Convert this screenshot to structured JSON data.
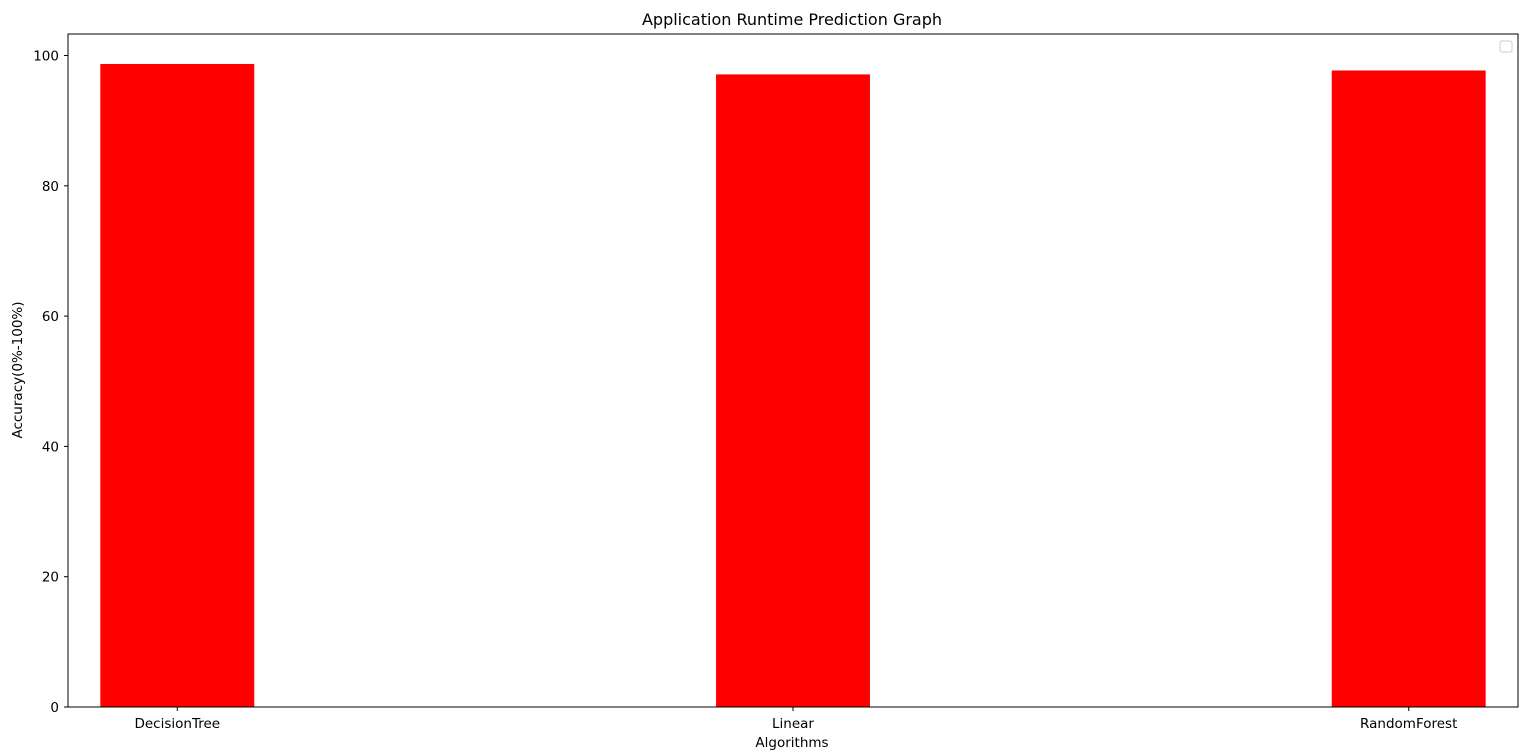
{
  "chart_data": {
    "type": "bar",
    "title": "Application Runtime Prediction Graph",
    "xlabel": "Algorithms",
    "ylabel": "Accuracy(0%-100%)",
    "categories": [
      "DecisionTree",
      "Linear",
      "RandomForest"
    ],
    "values": [
      98.7,
      97.1,
      97.7
    ],
    "ylim": [
      0,
      103.3
    ],
    "yticks": [
      0,
      20,
      40,
      60,
      80,
      100
    ],
    "bar_color": "#ff0000",
    "grid": false,
    "legend": {
      "position": "top-right",
      "entries": []
    }
  }
}
